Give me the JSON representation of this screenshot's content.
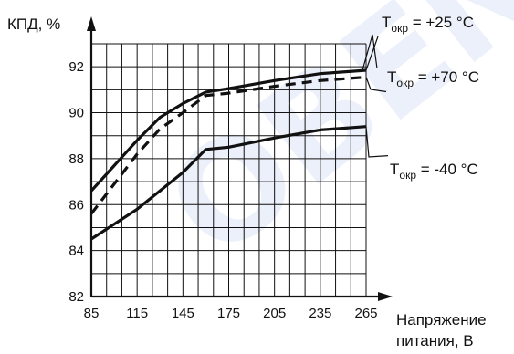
{
  "chart_data": {
    "type": "line",
    "ylabel": "КПД, %",
    "xlabel_lines": [
      "Напряжение",
      "питания, В"
    ],
    "xlim": [
      85,
      265
    ],
    "ylim": [
      82,
      92
    ],
    "x_ticks": [
      85,
      115,
      145,
      175,
      205,
      235,
      265
    ],
    "y_ticks": [
      82,
      84,
      86,
      88,
      90,
      92
    ],
    "grid": true,
    "series": [
      {
        "label": {
          "main": "T",
          "sub": "окр",
          "text": " = +25 °C"
        },
        "style": "solid",
        "points": [
          [
            85,
            86.6
          ],
          [
            100,
            87.7
          ],
          [
            115,
            88.8
          ],
          [
            130,
            89.8
          ],
          [
            145,
            90.4
          ],
          [
            160,
            90.9
          ],
          [
            175,
            91.05
          ],
          [
            205,
            91.4
          ],
          [
            235,
            91.7
          ],
          [
            265,
            91.85
          ]
        ]
      },
      {
        "label": {
          "main": "T",
          "sub": "окр",
          "text": " = +70 °C"
        },
        "style": "dashed",
        "points": [
          [
            85,
            85.6
          ],
          [
            100,
            86.9
          ],
          [
            115,
            88.2
          ],
          [
            130,
            89.3
          ],
          [
            145,
            90.0
          ],
          [
            160,
            90.75
          ],
          [
            175,
            90.85
          ],
          [
            205,
            91.15
          ],
          [
            235,
            91.4
          ],
          [
            265,
            91.55
          ]
        ]
      },
      {
        "label": {
          "main": "T",
          "sub": "окр",
          "text": " = -40 °C"
        },
        "style": "solid",
        "points": [
          [
            85,
            84.5
          ],
          [
            115,
            85.8
          ],
          [
            145,
            87.4
          ],
          [
            160,
            88.4
          ],
          [
            175,
            88.5
          ],
          [
            205,
            88.9
          ],
          [
            235,
            89.25
          ],
          [
            265,
            89.4
          ]
        ]
      }
    ],
    "watermark": "OBEN"
  }
}
